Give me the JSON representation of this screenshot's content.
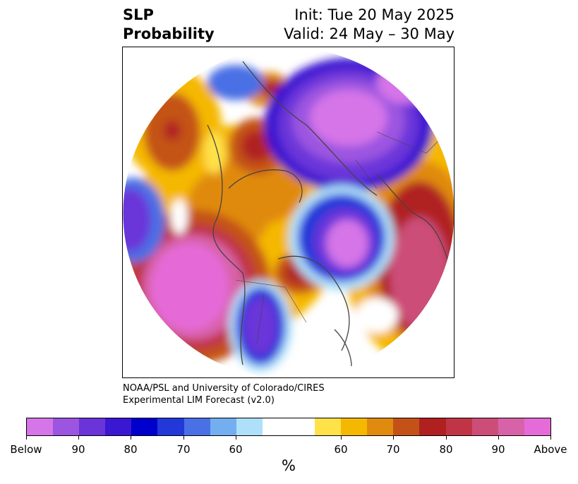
{
  "header": {
    "left_line1": "SLP",
    "left_line2": "Probability",
    "right_line1": "Init: Tue 20 May 2025",
    "right_line2": "Valid: 24 May – 30 May"
  },
  "credit": {
    "line1": "NOAA/PSL and University of Colorado/CIRES",
    "line2": "Experimental LIM Forecast (v2.0)"
  },
  "colorbar": {
    "colors": [
      "#d575e8",
      "#9b55e0",
      "#6a34d9",
      "#3a17d0",
      "#0000cc",
      "#2238d9",
      "#4a70e5",
      "#73aef0",
      "#aee0fa",
      "#ffffff",
      "#ffffff",
      "#ffe14a",
      "#f5b800",
      "#e08a10",
      "#c45218",
      "#b02020",
      "#c03545",
      "#cc4e78",
      "#d862a8",
      "#e56bd8"
    ],
    "ticks": [
      "Below",
      "90",
      "80",
      "70",
      "60",
      "60",
      "70",
      "80",
      "90",
      "Above"
    ],
    "unit": "%"
  },
  "map": {
    "projection": "north-polar-stereographic",
    "colors": {
      "below_strong": "#d575e8",
      "below_mid": "#3a17d0",
      "below_weak": "#aee0fa",
      "neutral": "#ffffff",
      "above_weak": "#ffe14a",
      "above_mid": "#e08a10",
      "above_strong": "#e56bd8",
      "coastline": "#444444"
    }
  }
}
